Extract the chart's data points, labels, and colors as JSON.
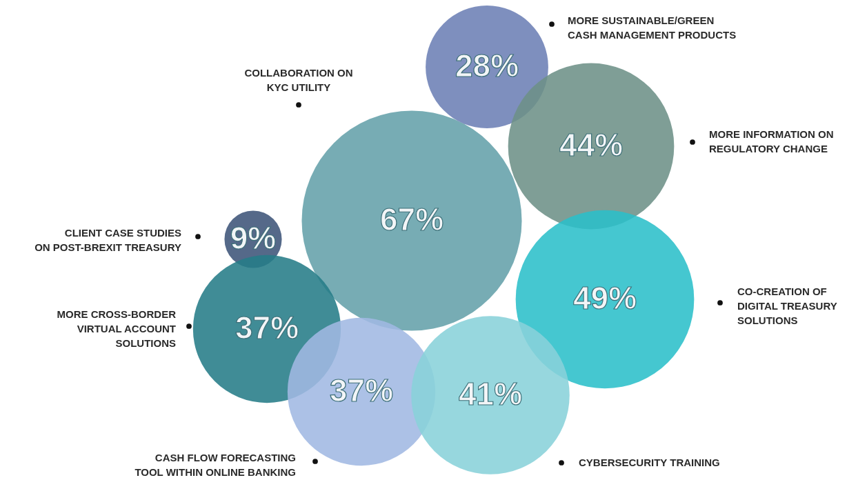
{
  "chart_data": {
    "type": "other",
    "categories": [
      "MORE SUSTAINABLE/GREEN CASH MANAGEMENT PRODUCTS",
      "MORE INFORMATION ON REGULATORY CHANGE",
      "COLLABORATION ON KYC UTILITY",
      "CLIENT CASE STUDIES ON POST-BREXIT TREASURY",
      "CO-CREATION OF DIGITAL TREASURY SOLUTIONS",
      "MORE CROSS-BORDER VIRTUAL ACCOUNT SOLUTIONS",
      "CASH FLOW FORECASTING TOOL WITHIN ONLINE BANKING",
      "CYBERSECURITY TRAINING"
    ],
    "values": [
      28,
      44,
      67,
      9,
      49,
      37,
      37,
      41
    ],
    "value_labels": [
      "28%",
      "44%",
      "67%",
      "9%",
      "49%",
      "37%",
      "37%",
      "41%"
    ],
    "colors": [
      "#6c7fb5",
      "#6d9187",
      "#64a0aa",
      "#3e5479",
      "#2bbfc9",
      "#267c87",
      "#a0b8e2",
      "#89d1d9"
    ]
  }
}
